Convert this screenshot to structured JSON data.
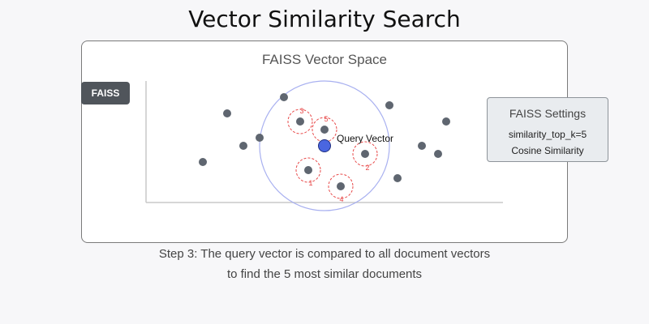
{
  "title": "Vector Similarity Search",
  "panel_title": "FAISS Vector Space",
  "badge": "FAISS",
  "query_label": "Query Vector",
  "settings": {
    "title": "FAISS Settings",
    "top_k": "similarity_top_k=5",
    "metric": "Cosine Similarity"
  },
  "caption": {
    "line1": "Step 3: The query vector is compared to all document vectors",
    "line2": "to find the 5 most similar documents"
  },
  "match_labels": [
    "1",
    "2",
    "3",
    "4",
    "5"
  ],
  "colors": {
    "document_point": "#5f6670",
    "query_point": "#4a66e0",
    "match_ring": "#e84a4a",
    "search_radius": "#a8b0f0",
    "axis": "#c8c8c8"
  }
}
